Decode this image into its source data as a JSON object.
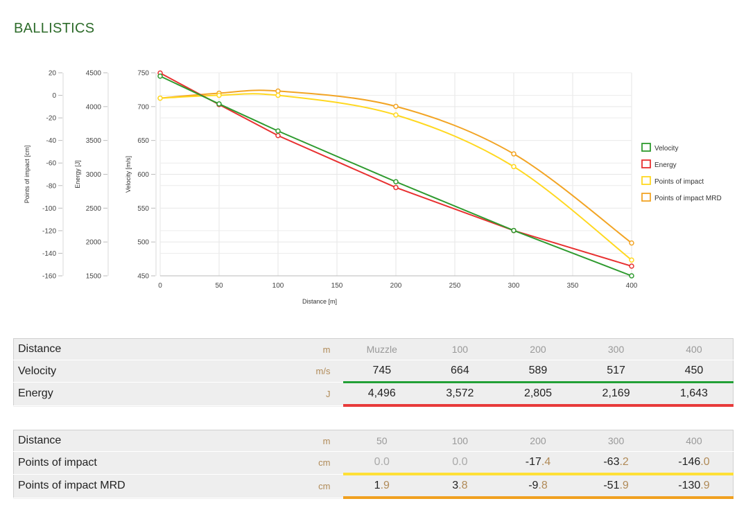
{
  "page": {
    "title": "BALLISTICS"
  },
  "chart_data": {
    "type": "line",
    "xlabel": "Distance [m]",
    "x_ticks": [
      0,
      50,
      100,
      150,
      200,
      250,
      300,
      350,
      400
    ],
    "xlim": [
      0,
      400
    ],
    "y_axes": [
      {
        "label": "Points of impact [cm]",
        "lim": [
          -160,
          20
        ],
        "ticks": [
          20,
          0,
          -20,
          -40,
          -60,
          -80,
          -100,
          -120,
          -140,
          -160
        ]
      },
      {
        "label": "Energy [J]",
        "lim": [
          1500,
          4500
        ],
        "ticks": [
          4500,
          4000,
          3500,
          3000,
          2500,
          2000,
          1500
        ]
      },
      {
        "label": "Velocity [m/s]",
        "lim": [
          450,
          750
        ],
        "ticks": [
          750,
          700,
          650,
          600,
          550,
          500,
          450
        ]
      }
    ],
    "grid": true,
    "legend": "right",
    "series": [
      {
        "name": "Velocity",
        "color": "#2e9a2e",
        "axis": 2,
        "x": [
          0,
          50,
          100,
          200,
          300,
          400
        ],
        "values": [
          745,
          704,
          664,
          589,
          517,
          450
        ]
      },
      {
        "name": "Energy",
        "color": "#e83030",
        "axis": 1,
        "x": [
          0,
          50,
          100,
          200,
          300,
          400
        ],
        "values": [
          4496,
          4030,
          3572,
          2805,
          2169,
          1643
        ]
      },
      {
        "name": "Points of impact",
        "color": "#ffd820",
        "axis": 0,
        "x": [
          0,
          50,
          100,
          200,
          300,
          400
        ],
        "values": [
          -2.5,
          0.0,
          0.0,
          -17.4,
          -63.2,
          -146.0
        ]
      },
      {
        "name": "Points of impact MRD",
        "color": "#f2a424",
        "axis": 0,
        "x": [
          0,
          50,
          100,
          200,
          300,
          400
        ],
        "values": [
          -2.5,
          1.9,
          3.8,
          -9.8,
          -51.9,
          -130.9
        ]
      }
    ]
  },
  "table1": {
    "rows": [
      {
        "label": "Distance",
        "unit": "m",
        "values": [
          "Muzzle",
          "100",
          "200",
          "300",
          "400"
        ]
      },
      {
        "label": "Velocity",
        "unit": "m/s",
        "values": [
          "745",
          "664",
          "589",
          "517",
          "450"
        ]
      },
      {
        "label": "Energy",
        "unit": "J",
        "values": [
          "4,496",
          "3,572",
          "2,805",
          "2,169",
          "1,643"
        ]
      }
    ]
  },
  "table2": {
    "rows": [
      {
        "label": "Distance",
        "unit": "m",
        "values": [
          "50",
          "100",
          "200",
          "300",
          "400"
        ]
      },
      {
        "label": "Points of impact",
        "unit": "cm",
        "values": [
          [
            "0",
            ".0"
          ],
          [
            "0",
            ".0"
          ],
          [
            "-17",
            ".4"
          ],
          [
            "-63",
            ".2"
          ],
          [
            "-146",
            ".0"
          ]
        ]
      },
      {
        "label": "Points of impact MRD",
        "unit": "cm",
        "values": [
          [
            "1",
            ".9"
          ],
          [
            "3",
            ".8"
          ],
          [
            "-9",
            ".8"
          ],
          [
            "-51",
            ".9"
          ],
          [
            "-130",
            ".9"
          ]
        ]
      }
    ]
  }
}
